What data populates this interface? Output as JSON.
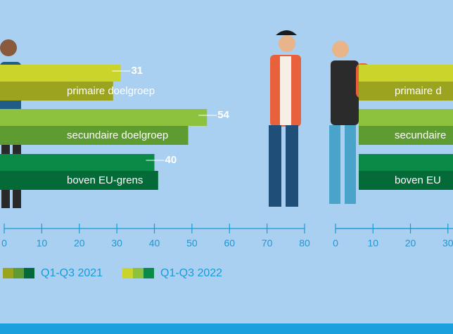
{
  "chart_data": [
    {
      "type": "bar",
      "orientation": "horizontal",
      "categories": [
        "primaire doelgroep",
        "secundaire doelgroep",
        "boven EU-grens"
      ],
      "series": [
        {
          "name": "Q1-Q3 2022",
          "colors": [
            "#cbd42a",
            "#8dc23f",
            "#0a8a46"
          ],
          "values": [
            31,
            54,
            40
          ],
          "show_labels": true
        },
        {
          "name": "Q1-Q3 2021",
          "colors": [
            "#9ba31f",
            "#5e9b31",
            "#046a37"
          ],
          "values": [
            29,
            49,
            41
          ],
          "show_labels": false
        }
      ],
      "xlim": [
        0,
        80
      ],
      "xticks": [
        0,
        10,
        20,
        30,
        40,
        50,
        60,
        70,
        80
      ]
    },
    {
      "type": "bar",
      "orientation": "horizontal",
      "categories": [
        "primaire d",
        "secundaire",
        "boven EU"
      ],
      "xlim": [
        0,
        80
      ],
      "xticks": [
        0,
        10,
        20,
        30
      ]
    }
  ]
}
